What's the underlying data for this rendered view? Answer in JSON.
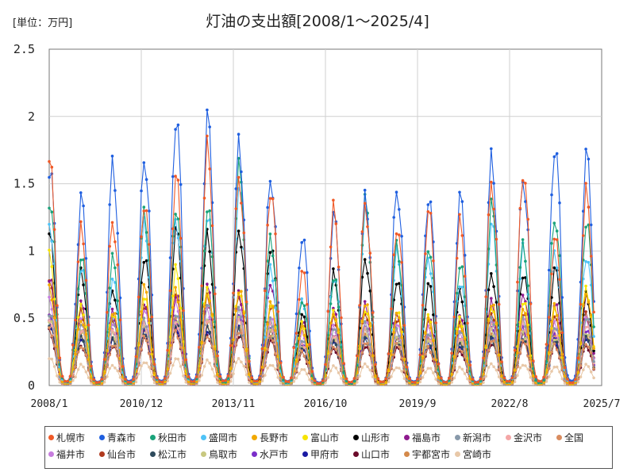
{
  "unit_label": "[単位：万円]",
  "chart_data": {
    "type": "line",
    "title": "灯油の支出額[2008/1～2025/4]",
    "y_unit": "万円",
    "ylim": [
      0,
      2.5
    ],
    "y_ticks": [
      "0",
      "0.5",
      "1",
      "1.5",
      "2",
      "2.5"
    ],
    "x_ticks": [
      "2008/1",
      "2010/12",
      "2013/11",
      "2016/10",
      "2019/9",
      "2022/8",
      "2025/7"
    ],
    "grid": "vertical-and-horizontal",
    "legend_position": "bottom",
    "seasonal_peaks": {
      "years": [
        2008,
        2009,
        2010,
        2011,
        2012,
        2013,
        2014,
        2015,
        2016,
        2017,
        2018,
        2019,
        2020,
        2021,
        2022,
        2023,
        2024,
        2025
      ],
      "peak_month": 1,
      "note": "monthly values, peak in January/February, near zero in summer"
    },
    "series": [
      {
        "name": "札幌市",
        "color": "#f05a28",
        "peaks": [
          1.65,
          1.15,
          1.22,
          1.38,
          1.55,
          1.75,
          1.55,
          1.48,
          0.85,
          1.3,
          1.35,
          1.2,
          1.3,
          1.2,
          1.5,
          1.62,
          1.1,
          1.42
        ]
      },
      {
        "name": "青森市",
        "color": "#1f5fe0",
        "peaks": [
          1.62,
          1.38,
          1.63,
          1.72,
          2.0,
          1.98,
          1.78,
          1.57,
          1.12,
          1.25,
          1.38,
          1.48,
          1.42,
          1.4,
          1.67,
          1.55,
          1.8,
          1.72
        ]
      },
      {
        "name": "秋田市",
        "color": "#1aa37a",
        "peaks": [
          1.4,
          0.95,
          0.93,
          1.3,
          1.35,
          1.32,
          1.6,
          1.1,
          0.65,
          0.8,
          1.35,
          1.05,
          1.05,
          0.9,
          1.32,
          1.05,
          1.27,
          1.22
        ]
      },
      {
        "name": "盛岡市",
        "color": "#4fc3f7",
        "peaks": [
          1.22,
          0.9,
          0.78,
          1.18,
          1.25,
          1.3,
          1.45,
          0.85,
          0.65,
          0.82,
          1.3,
          0.98,
          0.95,
          0.78,
          1.2,
          1.0,
          1.0,
          0.98
        ]
      },
      {
        "name": "長野市",
        "color": "#f2a900",
        "peaks": [
          0.72,
          0.5,
          0.55,
          0.72,
          0.7,
          0.7,
          0.72,
          0.6,
          0.42,
          0.55,
          0.62,
          0.52,
          0.48,
          0.46,
          0.62,
          0.55,
          0.58,
          0.7
        ]
      },
      {
        "name": "富山市",
        "color": "#f7e400",
        "peaks": [
          0.95,
          0.6,
          0.55,
          0.65,
          0.85,
          0.72,
          0.72,
          0.6,
          0.45,
          0.55,
          0.58,
          0.55,
          0.5,
          0.5,
          0.6,
          0.62,
          0.55,
          0.72
        ]
      },
      {
        "name": "山形市",
        "color": "#000000",
        "peaks": [
          1.1,
          0.83,
          0.72,
          0.97,
          1.15,
          1.1,
          1.17,
          1.05,
          0.52,
          0.82,
          0.95,
          0.8,
          0.75,
          0.68,
          0.84,
          0.85,
          0.87,
          0.66
        ]
      },
      {
        "name": "福島市",
        "color": "#8e1a8e",
        "peaks": [
          0.8,
          0.6,
          0.55,
          0.63,
          0.68,
          0.72,
          0.68,
          0.78,
          0.48,
          0.55,
          0.6,
          0.55,
          0.5,
          0.5,
          0.62,
          0.7,
          0.62,
          0.65
        ]
      },
      {
        "name": "新潟市",
        "color": "#8899aa",
        "peaks": [
          0.55,
          0.45,
          0.48,
          0.5,
          0.55,
          0.6,
          0.55,
          0.5,
          0.35,
          0.42,
          0.45,
          0.42,
          0.4,
          0.4,
          0.48,
          0.5,
          0.45,
          0.5
        ]
      },
      {
        "name": "金沢市",
        "color": "#f4a6a6",
        "peaks": [
          0.5,
          0.42,
          0.4,
          0.45,
          0.48,
          0.5,
          0.48,
          0.45,
          0.32,
          0.38,
          0.42,
          0.4,
          0.38,
          0.36,
          0.45,
          0.45,
          0.42,
          0.46
        ]
      },
      {
        "name": "全国",
        "color": "#d98c5f",
        "peaks": [
          0.42,
          0.3,
          0.3,
          0.35,
          0.4,
          0.38,
          0.4,
          0.35,
          0.25,
          0.3,
          0.32,
          0.3,
          0.28,
          0.28,
          0.34,
          0.32,
          0.3,
          0.32
        ]
      },
      {
        "name": "福井市",
        "color": "#c77dde",
        "peaks": [
          0.62,
          0.5,
          0.48,
          0.55,
          0.6,
          0.58,
          0.6,
          0.5,
          0.38,
          0.45,
          0.5,
          0.45,
          0.42,
          0.4,
          0.5,
          0.5,
          0.45,
          0.5
        ]
      },
      {
        "name": "仙台市",
        "color": "#b03a1e",
        "peaks": [
          0.75,
          0.55,
          0.5,
          0.6,
          0.65,
          0.65,
          0.68,
          0.6,
          0.45,
          0.5,
          0.55,
          0.5,
          0.48,
          0.45,
          0.55,
          0.55,
          0.5,
          0.52
        ]
      },
      {
        "name": "松江市",
        "color": "#2e4a5c",
        "peaks": [
          0.45,
          0.35,
          0.35,
          0.4,
          0.45,
          0.42,
          0.42,
          0.38,
          0.28,
          0.32,
          0.35,
          0.33,
          0.3,
          0.3,
          0.35,
          0.36,
          0.33,
          0.35
        ]
      },
      {
        "name": "鳥取市",
        "color": "#c8c880",
        "peaks": [
          0.5,
          0.4,
          0.38,
          0.45,
          0.5,
          0.48,
          0.48,
          0.42,
          0.3,
          0.35,
          0.4,
          0.36,
          0.35,
          0.33,
          0.4,
          0.4,
          0.36,
          0.38
        ]
      },
      {
        "name": "水戸市",
        "color": "#7a2ec9",
        "peaks": [
          0.55,
          0.42,
          0.4,
          0.45,
          0.5,
          0.5,
          0.5,
          0.45,
          0.33,
          0.38,
          0.42,
          0.4,
          0.38,
          0.35,
          0.42,
          0.42,
          0.4,
          0.42
        ]
      },
      {
        "name": "甲府市",
        "color": "#1a1aa3",
        "peaks": [
          0.48,
          0.36,
          0.35,
          0.4,
          0.45,
          0.42,
          0.45,
          0.4,
          0.3,
          0.34,
          0.36,
          0.34,
          0.32,
          0.3,
          0.36,
          0.38,
          0.34,
          0.36
        ]
      },
      {
        "name": "山口市",
        "color": "#6b0a2a",
        "peaks": [
          0.4,
          0.3,
          0.3,
          0.35,
          0.4,
          0.38,
          0.38,
          0.33,
          0.24,
          0.28,
          0.3,
          0.28,
          0.27,
          0.26,
          0.32,
          0.32,
          0.3,
          0.3
        ]
      },
      {
        "name": "宇都宮市",
        "color": "#d4894a",
        "peaks": [
          0.5,
          0.38,
          0.36,
          0.42,
          0.48,
          0.45,
          0.46,
          0.42,
          0.3,
          0.35,
          0.4,
          0.36,
          0.34,
          0.33,
          0.4,
          0.4,
          0.36,
          0.38
        ]
      },
      {
        "name": "宮崎市",
        "color": "#e8c8a8",
        "peaks": [
          0.2,
          0.15,
          0.15,
          0.18,
          0.2,
          0.18,
          0.2,
          0.16,
          0.12,
          0.14,
          0.16,
          0.14,
          0.13,
          0.13,
          0.16,
          0.16,
          0.14,
          0.15
        ]
      }
    ]
  }
}
